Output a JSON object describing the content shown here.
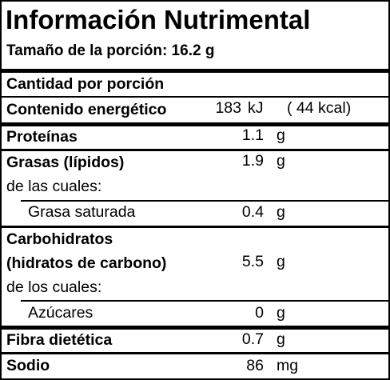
{
  "title": "Información Nutrimental",
  "serving": "Tamaño de la porción: 16.2 g",
  "rows": {
    "cantidad": {
      "label": "Cantidad por porción"
    },
    "energia": {
      "label": "Contenido energético",
      "value": "183",
      "unit": "kJ",
      "extra": "( 44 kcal)"
    },
    "proteinas": {
      "label": "Proteínas",
      "value": "1.1",
      "unit": "g"
    },
    "grasas": {
      "label": "Grasas (lípidos)",
      "value": "1.9",
      "unit": "g",
      "sub_heading": "de las cuales:"
    },
    "grasa_saturada": {
      "label": "Grasa saturada",
      "value": "0.4",
      "unit": "g"
    },
    "carbohidratos": {
      "label_line1": "Carbohidratos",
      "label_line2": "(hidratos de carbono)",
      "value": "5.5",
      "unit": "g",
      "sub_heading": "de los cuales:"
    },
    "azucares": {
      "label": "Azúcares",
      "value": "0",
      "unit": "g"
    },
    "fibra": {
      "label": "Fibra dietética",
      "value": "0.7",
      "unit": "g"
    },
    "sodio": {
      "label": "Sodio",
      "value": "86",
      "unit": "mg"
    }
  }
}
